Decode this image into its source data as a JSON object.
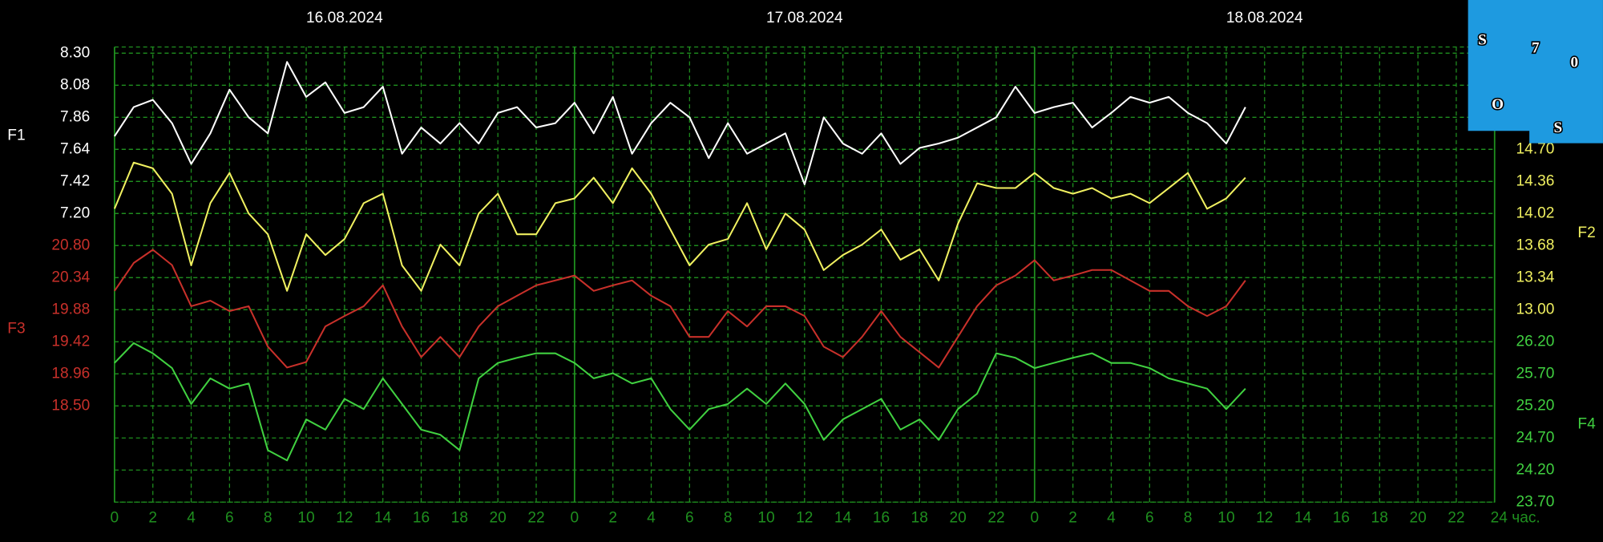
{
  "chart_data": {
    "type": "line",
    "dates": [
      "16.08.2024",
      "17.08.2024",
      "18.08.2024"
    ],
    "x": [
      0,
      1,
      2,
      3,
      4,
      5,
      6,
      7,
      8,
      9,
      10,
      11,
      12,
      13,
      14,
      15,
      16,
      17,
      18,
      19,
      20,
      21,
      22,
      23,
      24,
      25,
      26,
      27,
      28,
      29,
      30,
      31,
      32,
      33,
      34,
      35,
      36,
      37,
      38,
      39,
      40,
      41,
      42,
      43,
      44,
      45,
      46,
      47,
      48,
      49,
      50,
      51,
      52,
      53,
      54,
      55,
      56,
      57,
      58,
      59
    ],
    "xlim": [
      0,
      72
    ],
    "xticks": [
      0,
      2,
      4,
      6,
      8,
      10,
      12,
      14,
      16,
      18,
      20,
      22,
      {
        "value": 24,
        "label": "0"
      },
      {
        "value": 26,
        "label": "2"
      },
      {
        "value": 28,
        "label": "4"
      },
      {
        "value": 30,
        "label": "6"
      },
      {
        "value": 32,
        "label": "8"
      },
      {
        "value": 34,
        "label": "10"
      },
      {
        "value": 36,
        "label": "12"
      },
      {
        "value": 38,
        "label": "14"
      },
      {
        "value": 40,
        "label": "16"
      },
      {
        "value": 42,
        "label": "18"
      },
      {
        "value": 44,
        "label": "20"
      },
      {
        "value": 46,
        "label": "22"
      },
      {
        "value": 48,
        "label": "0"
      },
      {
        "value": 50,
        "label": "2"
      },
      {
        "value": 52,
        "label": "4"
      },
      {
        "value": 54,
        "label": "6"
      },
      {
        "value": 56,
        "label": "8"
      },
      {
        "value": 58,
        "label": "10"
      },
      {
        "value": 60,
        "label": "12"
      },
      {
        "value": 62,
        "label": "14"
      },
      {
        "value": 64,
        "label": "16"
      },
      {
        "value": 66,
        "label": "18"
      },
      {
        "value": 68,
        "label": "20"
      },
      {
        "value": 70,
        "label": "22"
      },
      {
        "value": 72,
        "label": "24 час."
      }
    ],
    "ylim": [
      5.22,
      8.3
    ],
    "yticks": [
      {
        "value": 8.3,
        "label": "8.30"
      },
      8.08,
      7.86,
      7.64,
      7.42,
      {
        "value": 7.2,
        "label": "7.20"
      }
    ],
    "y2lim": [
      10.96,
      15.72
    ],
    "y2ticks": [
      {
        "value": 14.7,
        "label": "14.70"
      },
      14.36,
      14.02,
      13.68,
      13.34,
      {
        "value": 13,
        "label": "13.00"
      }
    ],
    "y3lim": [
      17.12,
      23.56
    ],
    "y3ticks": [
      {
        "value": 20.8,
        "label": "20.80"
      },
      20.34,
      19.88,
      19.42,
      18.96,
      {
        "value": 18.5,
        "label": "18.50"
      }
    ],
    "y4lim": [
      23.7,
      30.7
    ],
    "y4ticks": [
      {
        "value": 26.2,
        "label": "26.20"
      },
      {
        "value": 25.7,
        "label": "25.70"
      },
      {
        "value": 25.2,
        "label": "25.20"
      },
      {
        "value": 24.7,
        "label": "24.70"
      },
      {
        "value": 24.2,
        "label": "24.20"
      },
      {
        "value": 23.7,
        "label": "23.70"
      }
    ],
    "grid": true,
    "series": [
      {
        "name": "F1",
        "color": "#ffffff",
        "axis": "y",
        "values": [
          7.73,
          7.93,
          7.98,
          7.82,
          7.54,
          7.75,
          8.05,
          7.86,
          7.75,
          8.24,
          8.0,
          8.1,
          7.89,
          7.93,
          8.07,
          7.61,
          7.79,
          7.68,
          7.82,
          7.68,
          7.89,
          7.93,
          7.79,
          7.82,
          7.96,
          7.75,
          8.0,
          7.61,
          7.82,
          7.96,
          7.86,
          7.58,
          7.82,
          7.61,
          7.68,
          7.75,
          7.4,
          7.86,
          7.68,
          7.61,
          7.75,
          7.54,
          7.65,
          7.68,
          7.72,
          7.79,
          7.86,
          8.07,
          7.89,
          7.93,
          7.96,
          7.79,
          7.89,
          8.0,
          7.96,
          8.0,
          7.89,
          7.82,
          7.68,
          7.93
        ]
      },
      {
        "name": "F2",
        "color": "#f0f060",
        "axis": "y2",
        "values": [
          14.07,
          14.56,
          14.5,
          14.23,
          13.47,
          14.13,
          14.45,
          14.02,
          13.8,
          13.2,
          13.8,
          13.58,
          13.75,
          14.13,
          14.23,
          13.47,
          13.2,
          13.69,
          13.47,
          14.02,
          14.23,
          13.8,
          13.8,
          14.13,
          14.18,
          14.4,
          14.13,
          14.5,
          14.23,
          13.85,
          13.47,
          13.69,
          13.75,
          14.13,
          13.64,
          14.02,
          13.85,
          13.42,
          13.58,
          13.69,
          13.85,
          13.53,
          13.64,
          13.31,
          13.91,
          14.34,
          14.29,
          14.29,
          14.45,
          14.29,
          14.23,
          14.29,
          14.18,
          14.23,
          14.13,
          14.29,
          14.45,
          14.07,
          14.18,
          14.4
        ]
      },
      {
        "name": "F3",
        "color": "#c8302a",
        "axis": "y3",
        "values": [
          20.15,
          20.55,
          20.74,
          20.52,
          19.93,
          20.01,
          19.86,
          19.93,
          19.35,
          19.05,
          19.13,
          19.64,
          19.79,
          19.93,
          20.23,
          19.64,
          19.2,
          19.49,
          19.2,
          19.64,
          19.93,
          20.08,
          20.23,
          20.3,
          20.37,
          20.15,
          20.23,
          20.3,
          20.08,
          19.93,
          19.49,
          19.49,
          19.86,
          19.64,
          19.93,
          19.93,
          19.79,
          19.35,
          19.2,
          19.49,
          19.86,
          19.49,
          19.27,
          19.05,
          19.49,
          19.93,
          20.23,
          20.37,
          20.59,
          20.3,
          20.37,
          20.45,
          20.45,
          20.3,
          20.15,
          20.15,
          19.93,
          19.79,
          19.93,
          20.3
        ]
      },
      {
        "name": "F4",
        "color": "#40d040",
        "axis": "y4",
        "values": [
          25.87,
          26.18,
          26.02,
          25.79,
          25.23,
          25.63,
          25.47,
          25.55,
          24.51,
          24.35,
          24.99,
          24.83,
          25.31,
          25.15,
          25.63,
          25.23,
          24.83,
          24.75,
          24.51,
          25.63,
          25.87,
          25.95,
          26.02,
          26.02,
          25.87,
          25.63,
          25.71,
          25.55,
          25.63,
          25.15,
          24.83,
          25.15,
          25.23,
          25.47,
          25.23,
          25.55,
          25.23,
          24.67,
          24.99,
          25.15,
          25.31,
          24.83,
          24.99,
          24.67,
          25.15,
          25.39,
          26.02,
          25.95,
          25.79,
          25.87,
          25.95,
          26.02,
          25.87,
          25.87,
          25.79,
          25.63,
          25.55,
          25.47,
          25.15,
          25.47
        ]
      }
    ]
  },
  "logo": {
    "letters": [
      "S",
      "7",
      "0",
      "O",
      "S"
    ]
  }
}
